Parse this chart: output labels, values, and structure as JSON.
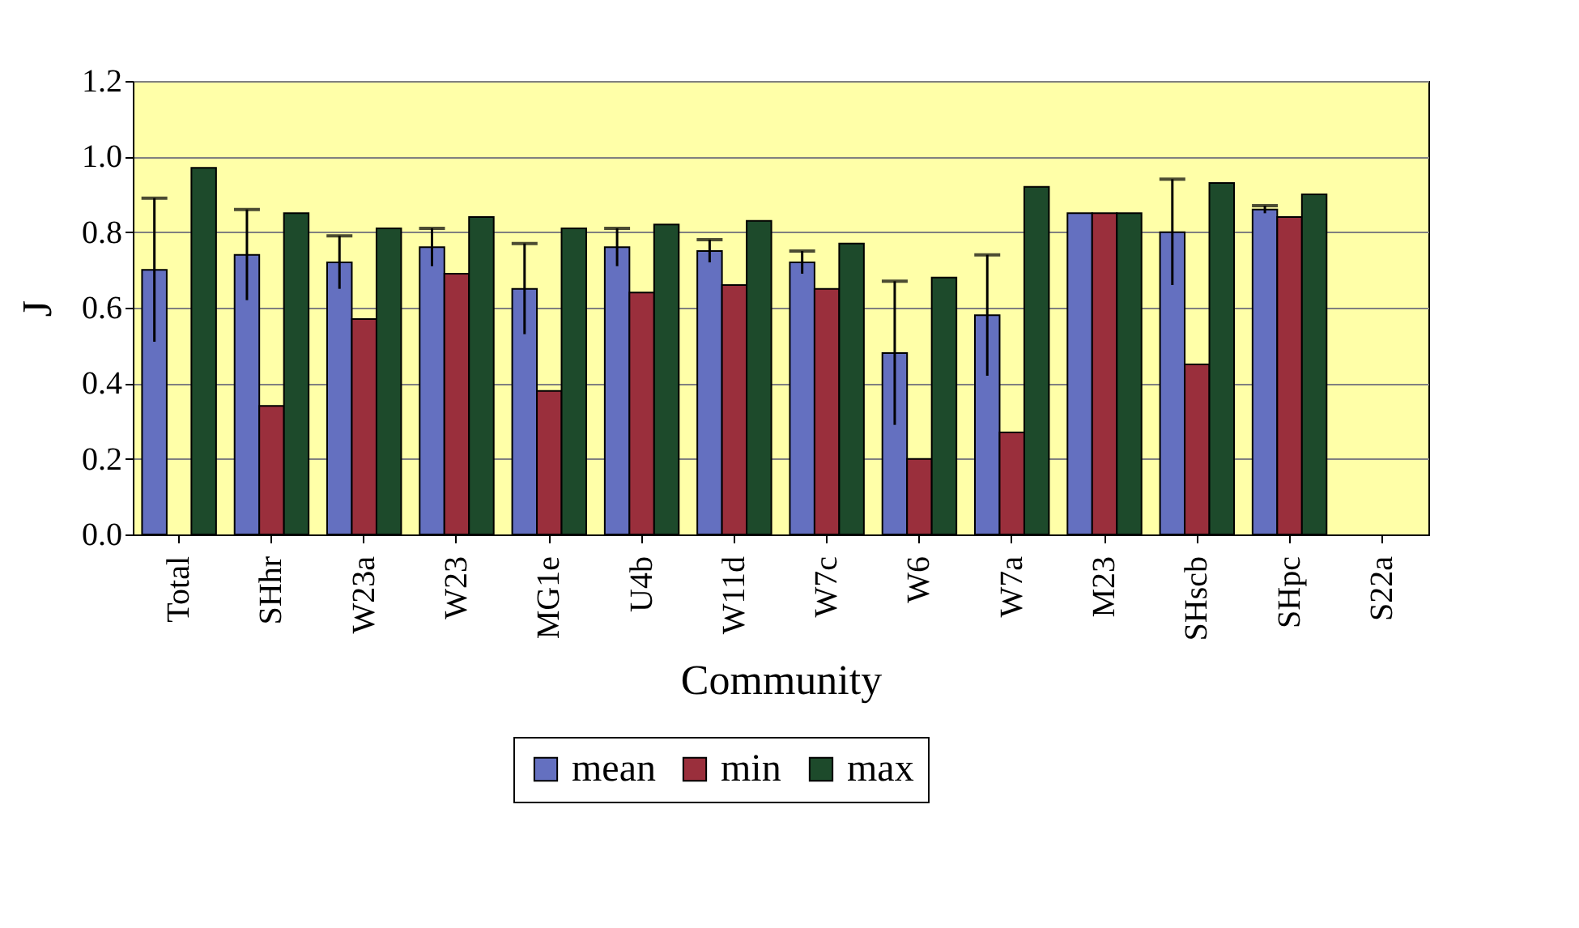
{
  "chart_data": {
    "type": "bar",
    "xlabel": "Community",
    "ylabel": "J",
    "categories": [
      "Total",
      "SHhr",
      "W23a",
      "W23",
      "MG1e",
      "U4b",
      "W11d",
      "W7c",
      "W6",
      "W7a",
      "M23",
      "SHscb",
      "SHpc",
      "S22a"
    ],
    "series": [
      {
        "name": "mean",
        "color": "#6470c0",
        "values": [
          0.7,
          0.74,
          0.72,
          0.76,
          0.65,
          0.76,
          0.75,
          0.72,
          0.48,
          0.58,
          0.85,
          0.8,
          0.86,
          null
        ],
        "errors": [
          0.19,
          0.12,
          0.07,
          0.05,
          0.12,
          0.05,
          0.03,
          0.03,
          0.19,
          0.16,
          null,
          0.14,
          0.01,
          null
        ]
      },
      {
        "name": "min",
        "color": "#9a2f3c",
        "values": [
          null,
          0.34,
          0.57,
          0.69,
          0.38,
          0.64,
          0.66,
          0.65,
          0.2,
          0.27,
          0.85,
          0.45,
          0.84,
          null
        ]
      },
      {
        "name": "max",
        "color": "#1d4a2b",
        "values": [
          0.97,
          0.85,
          0.81,
          0.84,
          0.81,
          0.82,
          0.83,
          0.77,
          0.68,
          0.92,
          0.85,
          0.93,
          0.9,
          null
        ]
      }
    ],
    "ylim": [
      0,
      1.2
    ],
    "yticks": [
      {
        "value": 0,
        "label": "0.0"
      },
      {
        "value": 0.2,
        "label": "0.2"
      },
      {
        "value": 0.4,
        "label": "0.4"
      },
      {
        "value": 0.6,
        "label": "0.6"
      },
      {
        "value": 0.8,
        "label": "0.8"
      },
      {
        "value": 1,
        "label": "1.0"
      },
      {
        "value": 1.2,
        "label": "1.2"
      }
    ],
    "grid": "y",
    "legend": "bottom"
  }
}
